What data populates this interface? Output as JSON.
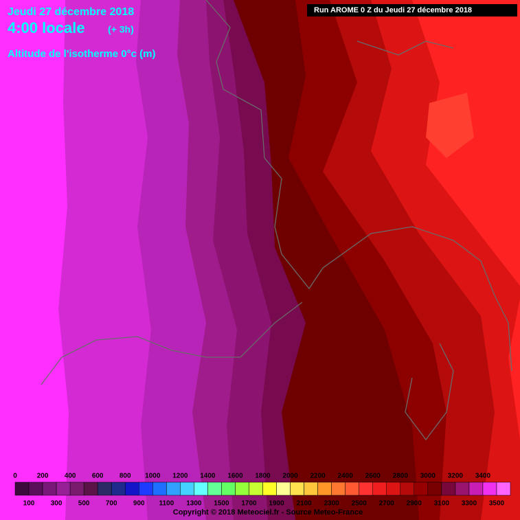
{
  "header": {
    "date": "Jeudi 27 décembre 2018",
    "time": "4:00 locale",
    "offset": "(+ 3h)",
    "parameter": "Altitude de l'isotherme 0°c (m)",
    "run": "Run AROME 0 Z du Jeudi 27 décembre 2018"
  },
  "legend": {
    "values": [
      0,
      100,
      200,
      300,
      400,
      500,
      600,
      700,
      800,
      900,
      1000,
      1100,
      1200,
      1300,
      1400,
      1500,
      1600,
      1700,
      1800,
      1900,
      2000,
      2100,
      2200,
      2300,
      2400,
      2500,
      2600,
      2700,
      2800,
      2900,
      3000,
      3100,
      3200,
      3300,
      3400,
      3500
    ],
    "colors": [
      "#3c0a3c",
      "#5a0f5a",
      "#7a187a",
      "#962096",
      "#7a1c6e",
      "#5a1446",
      "#2a2a66",
      "#1e2a8c",
      "#1414c8",
      "#1e3cff",
      "#1e6eff",
      "#32a0ff",
      "#46d2ff",
      "#64ffff",
      "#64ff96",
      "#64ff64",
      "#96ff3c",
      "#c8ff32",
      "#ffff28",
      "#ffff96",
      "#ffe150",
      "#ffc83c",
      "#ff9628",
      "#ff7832",
      "#ff5a32",
      "#ff3232",
      "#f01e1e",
      "#dc1414",
      "#b40a0a",
      "#960000",
      "#780000",
      "#78083c",
      "#96146e",
      "#c81eb4",
      "#f032f0",
      "#ff64ff"
    ]
  },
  "footer": {
    "copyright": "Copyright © 2018 Meteociel.fr - Source Meteo-France"
  }
}
